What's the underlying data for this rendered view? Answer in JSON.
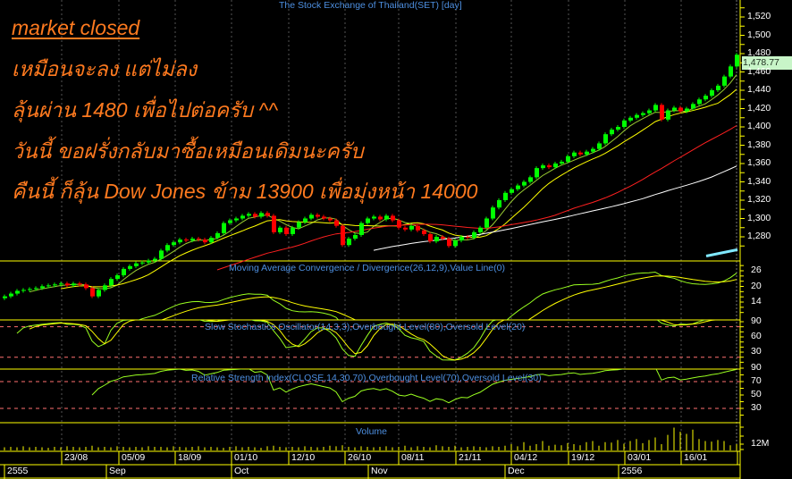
{
  "header": {
    "title": "The Stock Exchange of Thailand(SET) [day]"
  },
  "annotations": [
    "market closed",
    "เหมือนจะลง แต่ไม่ลง",
    "ลุ้นผ่าน 1480 เพื่อไปต่อครับ ^^",
    "วันนี้ ขอฝรั่งกลับมาซื้อเหมือนเดิมนะครับ",
    "คืนนี้ ก็ลุ้น Dow Jones ข้าม 13900 เพื่อมุ่งหน้า 14000"
  ],
  "colors": {
    "annotation": "#ff7a1f",
    "title": "#4d8fe0",
    "axis": "#ffff00",
    "up": "#00ff00",
    "down": "#ff0000"
  },
  "chart_data": {
    "type": "candlestick",
    "price": {
      "yticks": [
        "1,520",
        "1,500",
        "1,480",
        "1,460",
        "1,440",
        "1,420",
        "1,400",
        "1,380",
        "1,360",
        "1,340",
        "1,320",
        "1,300",
        "1,280"
      ],
      "ytick_values": [
        1520,
        1500,
        1480,
        1460,
        1440,
        1420,
        1400,
        1380,
        1360,
        1340,
        1320,
        1300,
        1280
      ],
      "last_price_label": "1,478.77",
      "closes": [
        1215,
        1218,
        1221,
        1222,
        1223,
        1224,
        1226,
        1227,
        1228,
        1229,
        1227,
        1229,
        1228,
        1224,
        1215,
        1222,
        1227,
        1234,
        1238,
        1245,
        1248,
        1251,
        1252,
        1254,
        1256,
        1265,
        1271,
        1274,
        1277,
        1276,
        1278,
        1277,
        1274,
        1279,
        1284,
        1295,
        1298,
        1300,
        1303,
        1305,
        1302,
        1306,
        1303,
        1285,
        1290,
        1283,
        1290,
        1296,
        1300,
        1304,
        1302,
        1300,
        1298,
        1292,
        1271,
        1278,
        1282,
        1295,
        1300,
        1302,
        1299,
        1303,
        1298,
        1290,
        1288,
        1292,
        1287,
        1283,
        1275,
        1280,
        1278,
        1270,
        1276,
        1280,
        1279,
        1285,
        1290,
        1300,
        1312,
        1320,
        1328,
        1332,
        1336,
        1340,
        1345,
        1355,
        1358,
        1356,
        1360,
        1362,
        1368,
        1372,
        1370,
        1373,
        1376,
        1382,
        1392,
        1397,
        1400,
        1407,
        1410,
        1413,
        1415,
        1418,
        1424,
        1408,
        1418,
        1421,
        1417,
        1420,
        1425,
        1430,
        1434,
        1440,
        1445,
        1455,
        1466,
        1478.77
      ]
    },
    "macd": {
      "title": "Moving Average Convergence / Divergence(26,12,9),Value Line(0)",
      "yticks": [
        "26",
        "20",
        "14"
      ],
      "ytick_values": [
        26,
        20,
        14
      ]
    },
    "stochastic": {
      "title": "Slow Stochastics Oscillator(14,3,3),Overbought Level(80),Oversold Level(20)",
      "yticks": [
        "90",
        "60",
        "30"
      ],
      "ytick_values": [
        90,
        60,
        30
      ],
      "overbought": 80,
      "oversold": 20
    },
    "rsi": {
      "title": "Relative Strength Index(CLOSE,14,30,70),Overbought Level(70),Oversold Level(30)",
      "yticks": [
        "90",
        "70",
        "50",
        "30"
      ],
      "ytick_values": [
        90,
        70,
        50,
        30
      ],
      "overbought": 70,
      "oversold": 30
    },
    "volume": {
      "title": "Volume",
      "yticks": [
        "12M"
      ],
      "ytick_values": [
        12
      ],
      "values": [
        6,
        7,
        6,
        8,
        6,
        7,
        6,
        5,
        7,
        6,
        8,
        7,
        6,
        7,
        9,
        6,
        7,
        6,
        8,
        7,
        6,
        7,
        6,
        8,
        7,
        7,
        6,
        8,
        7,
        6,
        7,
        8,
        6,
        7,
        6,
        5,
        7,
        8,
        6,
        7,
        6,
        5,
        8,
        9,
        7,
        6,
        7,
        6,
        8,
        7,
        6,
        7,
        9,
        8,
        10,
        7,
        6,
        8,
        7,
        6,
        7,
        8,
        6,
        7,
        9,
        6,
        8,
        7,
        6,
        10,
        8,
        7,
        9,
        6,
        7,
        8,
        7,
        6,
        8,
        7,
        9,
        12,
        8,
        16,
        9,
        12,
        18,
        9,
        11,
        10,
        14,
        12,
        10,
        16,
        18,
        9,
        16,
        15,
        20,
        13,
        18,
        22,
        14,
        20,
        25,
        12,
        30,
        44,
        36,
        32,
        40,
        22,
        18,
        17,
        20,
        18,
        10,
        12
      ]
    },
    "x_dates": [
      "23/08",
      "05/09",
      "18/09",
      "01/10",
      "12/10",
      "26/10",
      "08/11",
      "21/11",
      "04/12",
      "19/12",
      "03/01",
      "16/01"
    ],
    "x_months": [
      "2555",
      "Sep",
      "Oct",
      "Nov",
      "Dec",
      "2556"
    ],
    "moving_averages": [
      {
        "color": "#9acd32"
      },
      {
        "color": "#ffff00"
      },
      {
        "color": "#ff2020"
      },
      {
        "color": "#ffffff"
      }
    ]
  }
}
